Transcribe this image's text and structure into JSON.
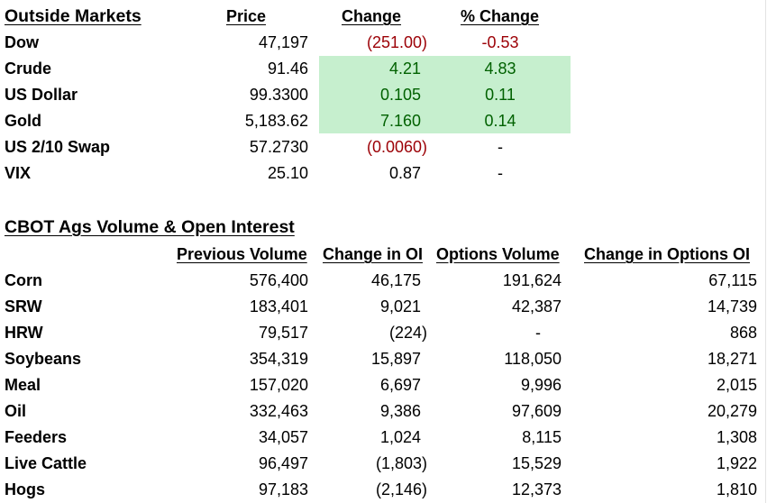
{
  "outside": {
    "title": "Outside Markets",
    "headers": {
      "price": "Price",
      "change": "Change",
      "pct": "% Change"
    },
    "rows": [
      {
        "name": "Dow",
        "price": "47,197",
        "change": "(251.00)",
        "pct": "-0.53"
      },
      {
        "name": "Crude",
        "price": "91.46",
        "change": "4.21",
        "pct": "4.83"
      },
      {
        "name": "US Dollar",
        "price": "99.3300",
        "change": "0.105",
        "pct": "0.11"
      },
      {
        "name": "Gold",
        "price": "5,183.62",
        "change": "7.160",
        "pct": "0.14"
      },
      {
        "name": "US 2/10 Swap",
        "price": "57.2730",
        "change": "(0.0060)",
        "pct": "-"
      },
      {
        "name": "VIX",
        "price": "25.10",
        "change": "0.87",
        "pct": "-"
      }
    ]
  },
  "cbot": {
    "title": "CBOT Ags Volume & Open Interest",
    "headers": {
      "prev": "Previous Volume",
      "oi": "Change in OI",
      "opt": "Options Volume",
      "optoi": "Change in Options OI"
    },
    "rows": [
      {
        "name": "Corn",
        "prev": "576,400",
        "oi": "46,175",
        "opt": "191,624",
        "optoi": "67,115"
      },
      {
        "name": "SRW",
        "prev": "183,401",
        "oi": "9,021",
        "opt": "42,387",
        "optoi": "14,739"
      },
      {
        "name": "HRW",
        "prev": "79,517",
        "oi": "(224)",
        "opt": "-",
        "optoi": "868"
      },
      {
        "name": "Soybeans",
        "prev": "354,319",
        "oi": "15,897",
        "opt": "118,050",
        "optoi": "18,271"
      },
      {
        "name": "Meal",
        "prev": "157,020",
        "oi": "6,697",
        "opt": "9,996",
        "optoi": "2,015"
      },
      {
        "name": "Oil",
        "prev": "332,463",
        "oi": "9,386",
        "opt": "97,609",
        "optoi": "20,279"
      },
      {
        "name": "Feeders",
        "prev": "34,057",
        "oi": "1,024",
        "opt": "8,115",
        "optoi": "1,308"
      },
      {
        "name": "Live Cattle",
        "prev": "96,497",
        "oi": "(1,803)",
        "opt": "15,529",
        "optoi": "1,922"
      },
      {
        "name": "Hogs",
        "prev": "97,183",
        "oi": "(2,146)",
        "opt": "12,373",
        "optoi": "1,810"
      }
    ]
  },
  "colors": {
    "negative": "#9c0006",
    "positive": "#006100",
    "highlight": "#c6efce"
  }
}
